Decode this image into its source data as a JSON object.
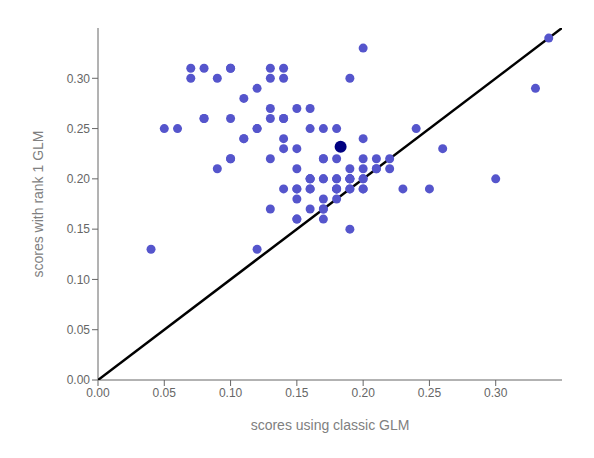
{
  "chart_data": {
    "type": "scatter",
    "xlabel": "scores using classic GLM",
    "ylabel": "scores with rank 1 GLM",
    "xlim": [
      0.0,
      0.35
    ],
    "ylim": [
      0.0,
      0.35
    ],
    "xticks": [
      {
        "value": 0.0,
        "label": "0.00"
      },
      0.05,
      {
        "value": 0.1,
        "label": "0.10"
      },
      0.15,
      {
        "value": 0.2,
        "label": "0.20"
      },
      0.25,
      {
        "value": 0.3,
        "label": "0.30"
      }
    ],
    "yticks": [
      {
        "value": 0.0,
        "label": "0.00"
      },
      0.05,
      {
        "value": 0.1,
        "label": "0.10"
      },
      0.15,
      {
        "value": 0.2,
        "label": "0.20"
      },
      0.25,
      {
        "value": 0.3,
        "label": "0.30"
      }
    ],
    "grid": false,
    "series": [
      {
        "type": "line",
        "color": "black",
        "x": [
          0.0,
          0.35
        ],
        "values": [
          0.0,
          0.35
        ]
      },
      {
        "type": "scatter",
        "color": "#5555cc",
        "x": [
          0.04,
          0.05,
          0.06,
          0.07,
          0.08,
          0.08,
          0.09,
          0.1,
          0.1,
          0.1,
          0.1,
          0.11,
          0.11,
          0.12,
          0.12,
          0.12,
          0.13,
          0.13,
          0.13,
          0.13,
          0.14,
          0.14,
          0.14,
          0.14,
          0.14,
          0.15,
          0.15,
          0.15,
          0.15,
          0.15,
          0.15,
          0.15,
          0.16,
          0.16,
          0.16,
          0.16,
          0.16,
          0.16,
          0.17,
          0.17,
          0.17,
          0.17,
          0.17,
          0.17,
          0.17,
          0.18,
          0.18,
          0.18,
          0.18,
          0.18,
          0.18,
          0.19,
          0.19,
          0.19,
          0.19,
          0.19,
          0.19,
          0.19,
          0.2,
          0.2,
          0.2,
          0.2,
          0.2,
          0.2,
          0.2,
          0.21,
          0.21,
          0.21,
          0.22,
          0.22,
          0.23,
          0.24,
          0.25,
          0.26,
          0.3,
          0.33,
          0.34,
          0.07,
          0.08,
          0.09,
          0.1,
          0.11,
          0.12,
          0.13,
          0.14,
          0.15,
          0.16,
          0.17,
          0.18,
          0.19,
          0.2,
          0.13,
          0.14,
          0.16,
          0.17,
          0.18,
          0.19
        ],
        "values": [
          0.13,
          0.25,
          0.25,
          0.3,
          0.26,
          0.26,
          0.3,
          0.22,
          0.26,
          0.31,
          0.31,
          0.24,
          0.28,
          0.13,
          0.25,
          0.29,
          0.17,
          0.22,
          0.26,
          0.3,
          0.19,
          0.24,
          0.26,
          0.3,
          0.23,
          0.16,
          0.16,
          0.19,
          0.19,
          0.21,
          0.23,
          0.27,
          0.17,
          0.19,
          0.2,
          0.2,
          0.25,
          0.27,
          0.16,
          0.17,
          0.18,
          0.2,
          0.22,
          0.22,
          0.25,
          0.19,
          0.19,
          0.2,
          0.2,
          0.25,
          0.18,
          0.15,
          0.19,
          0.19,
          0.2,
          0.2,
          0.2,
          0.3,
          0.19,
          0.2,
          0.2,
          0.21,
          0.22,
          0.24,
          0.19,
          0.21,
          0.21,
          0.22,
          0.22,
          0.21,
          0.19,
          0.25,
          0.19,
          0.23,
          0.2,
          0.29,
          0.34,
          0.31,
          0.31,
          0.21,
          0.22,
          0.24,
          0.25,
          0.27,
          0.26,
          0.18,
          0.2,
          0.17,
          0.19,
          0.2,
          0.33,
          0.31,
          0.31,
          0.19,
          0.2,
          0.22,
          0.21
        ]
      },
      {
        "type": "scatter",
        "color": "#000080",
        "x": [
          0.183
        ],
        "values": [
          0.232
        ]
      }
    ]
  }
}
